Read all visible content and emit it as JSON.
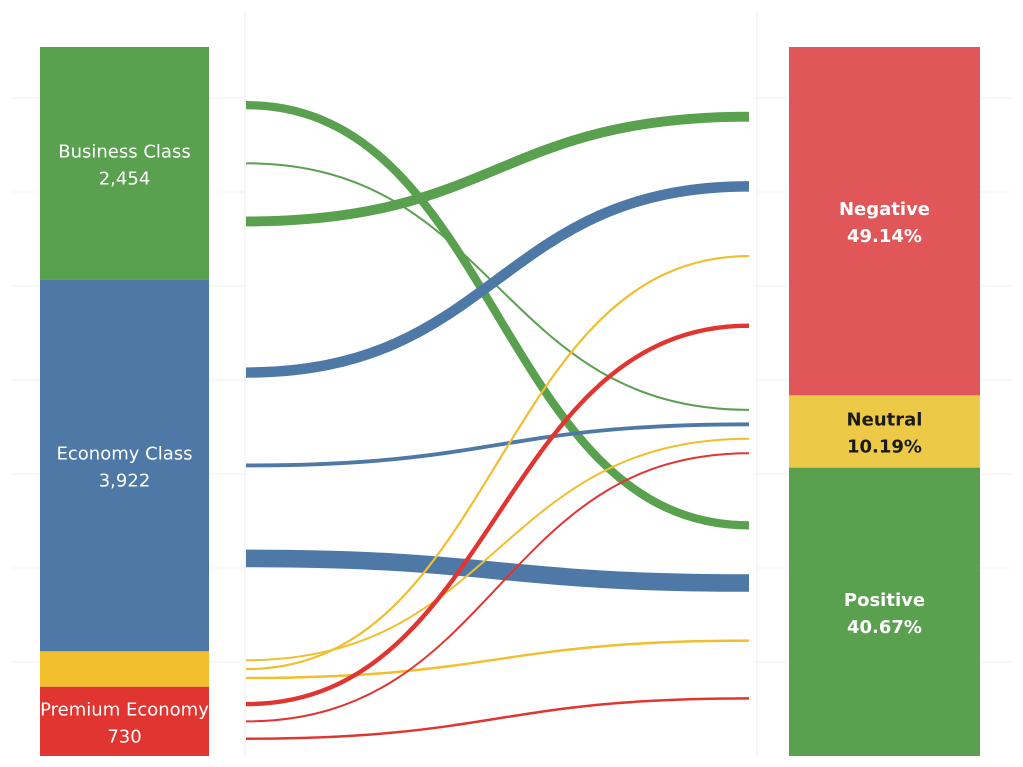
{
  "chart_data": {
    "type": "sankey",
    "sources": [
      {
        "id": "business",
        "label": "Business Class",
        "value_text": "2,454",
        "value": 2454,
        "color": "#59A14F",
        "text_color": "#ffffff"
      },
      {
        "id": "economy",
        "label": "Economy Class",
        "value_text": "3,922",
        "value": 3922,
        "color": "#4E79A7",
        "text_color": "#ffffff"
      },
      {
        "id": "premium_plus",
        "label": "",
        "value_text": "",
        "value": 374,
        "color": "#F1BE2E",
        "text_color": "#ffffff"
      },
      {
        "id": "premium",
        "label": "Premium Economy",
        "value_text": "730",
        "value": 730,
        "color": "#E03531",
        "text_color": "#ffffff"
      }
    ],
    "targets": [
      {
        "id": "negative",
        "label": "Negative",
        "value_text": "49.14%",
        "percent": 49.14,
        "color": "#E15759",
        "text_color": "#ffffff"
      },
      {
        "id": "neutral",
        "label": "Neutral",
        "value_text": "10.19%",
        "percent": 10.19,
        "color": "#EDC948",
        "text_color": "#1a1a1a"
      },
      {
        "id": "positive",
        "label": "Positive",
        "value_text": "40.67%",
        "percent": 40.67,
        "color": "#59A14F",
        "text_color": "#ffffff"
      }
    ],
    "flows": [
      {
        "source": "business",
        "target": "positive",
        "color": "#59A14F",
        "value": 150
      },
      {
        "source": "business",
        "target": "neutral",
        "color": "#59A14F",
        "value": 25
      },
      {
        "source": "business",
        "target": "negative",
        "color": "#59A14F",
        "value": 180
      },
      {
        "source": "economy",
        "target": "positive",
        "color": "#4E79A7",
        "value": 320
      },
      {
        "source": "economy",
        "target": "neutral",
        "color": "#4E79A7",
        "value": 70
      },
      {
        "source": "economy",
        "target": "negative",
        "color": "#4E79A7",
        "value": 190
      },
      {
        "source": "premium_plus",
        "target": "positive",
        "color": "#F1BE2E",
        "value": 45
      },
      {
        "source": "premium_plus",
        "target": "neutral",
        "color": "#F1BE2E",
        "value": 15
      },
      {
        "source": "premium_plus",
        "target": "negative",
        "color": "#F1BE2E",
        "value": 40
      },
      {
        "source": "premium",
        "target": "positive",
        "color": "#E03531",
        "value": 45
      },
      {
        "source": "premium",
        "target": "neutral",
        "color": "#E03531",
        "value": 10
      },
      {
        "source": "premium",
        "target": "negative",
        "color": "#E03531",
        "value": 80
      }
    ]
  }
}
